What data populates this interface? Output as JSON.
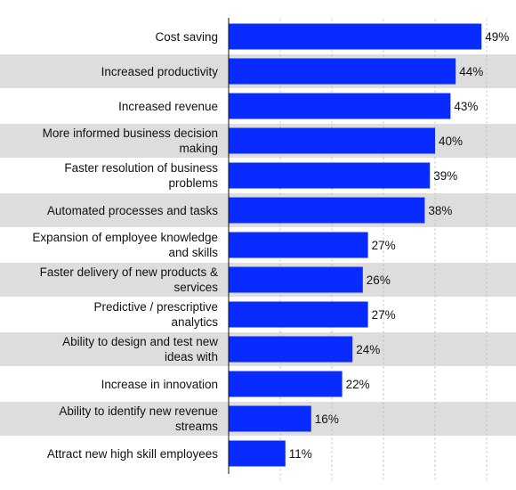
{
  "chart_data": {
    "type": "bar",
    "orientation": "horizontal",
    "title": "",
    "xlabel": "",
    "ylabel": "",
    "xlim": [
      0,
      50
    ],
    "grid": true,
    "legend": "none",
    "bar_color": "#0a2bff",
    "band_color": "#dddddd",
    "categories": [
      "Cost saving",
      "Increased productivity",
      "Increased revenue",
      "More informed business decision making",
      "Faster resolution of business problems",
      "Automated processes and tasks",
      "Expansion of employee knowledge and skills",
      "Faster delivery of new products & services",
      "Predictive / prescriptive analytics",
      "Ability to design and test new ideas with",
      "Increase in innovation",
      "Ability to identify new revenue streams",
      "Attract new high skill employees"
    ],
    "values": [
      49,
      44,
      43,
      40,
      39,
      38,
      27,
      26,
      27,
      24,
      22,
      16,
      11
    ],
    "value_labels": [
      "49%",
      "44%",
      "43%",
      "40%",
      "39%",
      "38%",
      "27%",
      "26%",
      "27%",
      "24%",
      "22%",
      "16%",
      "11%"
    ]
  }
}
